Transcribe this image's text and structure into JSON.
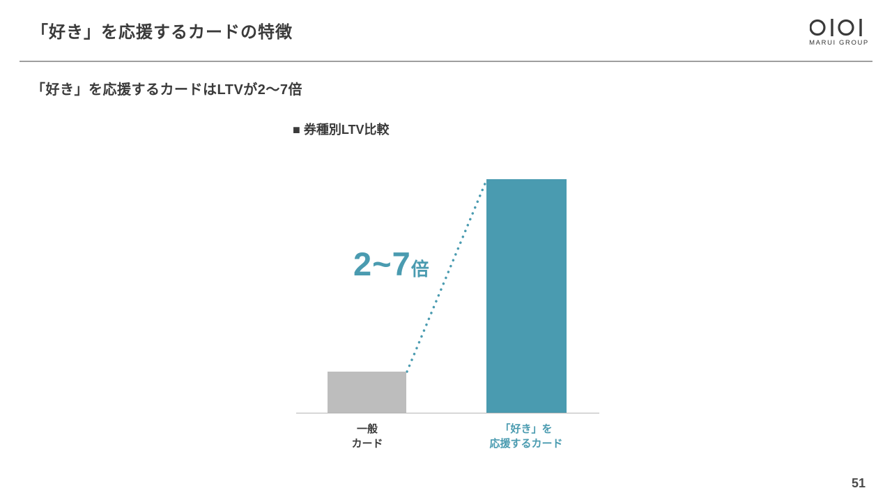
{
  "header": {
    "title": "「好き」を応援するカードの特徴"
  },
  "logo": {
    "caption": "MARUI GROUP"
  },
  "subtitle": "「好き」を応援するカードはLTVが2〜7倍",
  "chart_data": {
    "type": "bar",
    "title": "■ 券種別LTV比較",
    "categories": [
      "一般カード",
      "「好き」を応援するカード"
    ],
    "category_lines": [
      [
        "一般",
        "カード"
      ],
      [
        "「好き」を",
        "応援するカード"
      ]
    ],
    "values": [
      1,
      5.7
    ],
    "xlabel": "",
    "ylabel": "",
    "ylim": [
      0,
      6
    ],
    "grid": false,
    "legend": false,
    "annotation": {
      "main": "2~7",
      "suffix": "倍"
    },
    "colors": {
      "bars": [
        "#bdbdbd",
        "#4a9bb0"
      ],
      "accent": "#4a9bb0",
      "dotted_line": "#4a9bb0"
    }
  },
  "footer": {
    "page_number": "51"
  }
}
